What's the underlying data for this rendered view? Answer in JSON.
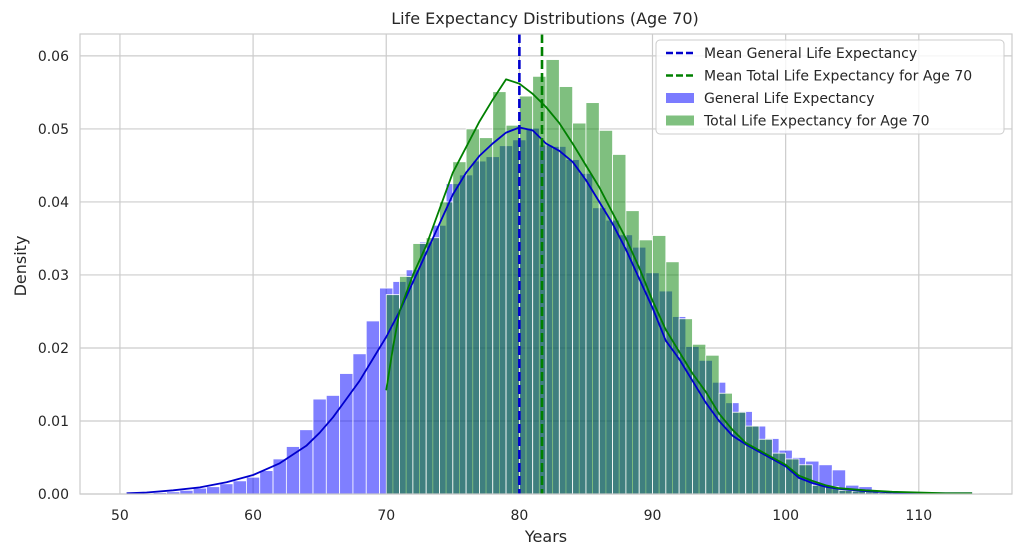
{
  "chart_data": {
    "type": "bar",
    "title": "Life Expectancy Distributions (Age 70)",
    "xlabel": "Years",
    "ylabel": "Density",
    "xlim": [
      47,
      117
    ],
    "ylim": [
      0,
      0.063
    ],
    "xticks": [
      50,
      60,
      70,
      80,
      90,
      100,
      110
    ],
    "yticks": [
      0.0,
      0.01,
      0.02,
      0.03,
      0.04,
      0.05,
      0.06
    ],
    "xtick_labels": [
      "50",
      "60",
      "70",
      "80",
      "90",
      "100",
      "110"
    ],
    "ytick_labels": [
      "0.00",
      "0.01",
      "0.02",
      "0.03",
      "0.04",
      "0.05",
      "0.06"
    ],
    "grid": true,
    "legend_position": "upper-right",
    "histograms": [
      {
        "name": "General Life Expectancy",
        "color": "#0000ff",
        "opacity": 0.5,
        "bin_start": 50.5,
        "bin_width": 1.0,
        "densities": [
          0.0001,
          0.0001,
          0.0002,
          0.0003,
          0.0005,
          0.0008,
          0.001,
          0.0014,
          0.0018,
          0.0023,
          0.0032,
          0.0048,
          0.0065,
          0.0088,
          0.013,
          0.0135,
          0.0165,
          0.0192,
          0.0237,
          0.0282,
          0.0291,
          0.0307,
          0.0345,
          0.0368,
          0.0425,
          0.0437,
          0.0456,
          0.0462,
          0.0477,
          0.0485,
          0.0501,
          0.0478,
          0.0476,
          0.0458,
          0.0439,
          0.0392,
          0.0375,
          0.0355,
          0.0338,
          0.0303,
          0.0278,
          0.0243,
          0.0202,
          0.0183,
          0.0153,
          0.0125,
          0.0113,
          0.0093,
          0.0076,
          0.006,
          0.005,
          0.0045,
          0.004,
          0.0033,
          0.0012,
          0.001,
          0.0005,
          0.0004,
          0.0003,
          0.0002,
          0.0002,
          0.0001,
          0.0001,
          0.0001
        ]
      },
      {
        "name": "Total Life Expectancy for Age 70",
        "color": "#008000",
        "opacity": 0.5,
        "bin_start": 70.0,
        "bin_width": 1.0,
        "densities": [
          0.0273,
          0.0298,
          0.0343,
          0.0351,
          0.04,
          0.0455,
          0.05,
          0.0488,
          0.0551,
          0.0505,
          0.0545,
          0.0572,
          0.0595,
          0.0558,
          0.0508,
          0.0536,
          0.0498,
          0.0465,
          0.0388,
          0.0348,
          0.0354,
          0.0318,
          0.024,
          0.0205,
          0.019,
          0.0138,
          0.0112,
          0.0093,
          0.0075,
          0.0056,
          0.0048,
          0.004,
          0.0012,
          0.001,
          0.0005,
          0.0004,
          0.0003,
          0.0002,
          0.0002,
          0.0002,
          0.0001,
          0.0001,
          0.0001,
          0.0001
        ]
      }
    ],
    "kde_curves": [
      {
        "name": "General Life Expectancy",
        "color": "#0000cd",
        "x": [
          50.5,
          52,
          54,
          56,
          58,
          60,
          62,
          64,
          65,
          66,
          67,
          68,
          69,
          70,
          71,
          72,
          73,
          74,
          75,
          76,
          77,
          78,
          79,
          80,
          81,
          82,
          83,
          84,
          85,
          86,
          87,
          88,
          89,
          90,
          91,
          92,
          93,
          94,
          95,
          96,
          97,
          98,
          99,
          100,
          101,
          102,
          103,
          104,
          106,
          108,
          110,
          112,
          114
        ],
        "y": [
          0.0001,
          0.0002,
          0.0005,
          0.0009,
          0.0016,
          0.0026,
          0.0042,
          0.0066,
          0.0084,
          0.0105,
          0.013,
          0.0155,
          0.0185,
          0.0215,
          0.025,
          0.029,
          0.033,
          0.037,
          0.041,
          0.044,
          0.0463,
          0.048,
          0.0495,
          0.0502,
          0.0498,
          0.048,
          0.047,
          0.0455,
          0.043,
          0.04,
          0.037,
          0.0335,
          0.0295,
          0.0255,
          0.021,
          0.0185,
          0.0155,
          0.0125,
          0.01,
          0.008,
          0.0068,
          0.0058,
          0.0048,
          0.0038,
          0.0022,
          0.0015,
          0.001,
          0.0007,
          0.0004,
          0.0002,
          0.0001,
          0.0001,
          0.0001
        ]
      },
      {
        "name": "Total Life Expectancy for Age 70",
        "color": "#008000",
        "x": [
          70,
          70.5,
          71,
          72,
          73,
          74,
          75,
          76,
          77,
          78,
          79,
          80,
          81,
          82,
          83,
          84,
          85,
          86,
          87,
          88,
          89,
          90,
          91,
          92,
          93,
          94,
          95,
          96,
          97,
          98,
          99,
          100,
          101,
          102,
          103,
          104,
          106,
          108,
          110,
          112,
          114
        ],
        "y": [
          0.0142,
          0.02,
          0.025,
          0.03,
          0.034,
          0.039,
          0.044,
          0.0475,
          0.051,
          0.054,
          0.0568,
          0.0562,
          0.0548,
          0.053,
          0.0508,
          0.048,
          0.045,
          0.042,
          0.0385,
          0.035,
          0.031,
          0.0265,
          0.0225,
          0.0195,
          0.0165,
          0.014,
          0.011,
          0.0088,
          0.007,
          0.006,
          0.005,
          0.004,
          0.0025,
          0.0018,
          0.0012,
          0.0008,
          0.0005,
          0.0003,
          0.0002,
          0.0001,
          0.0001
        ]
      }
    ],
    "vlines": [
      {
        "name": "Mean General Life Expectancy",
        "x": 80.0,
        "color": "#0000cd",
        "style": "dashed"
      },
      {
        "name": "Mean Total Life Expectancy for Age 70",
        "x": 81.7,
        "color": "#008000",
        "style": "dashed"
      }
    ],
    "legend": [
      {
        "label": "Mean General Life Expectancy",
        "kind": "line",
        "color": "#0000cd"
      },
      {
        "label": "Mean Total Life Expectancy for Age 70",
        "kind": "line",
        "color": "#008000"
      },
      {
        "label": "General Life Expectancy",
        "kind": "patch",
        "color": "#7b7bff"
      },
      {
        "label": "Total Life Expectancy for Age 70",
        "kind": "patch",
        "color": "#7fc07f"
      }
    ]
  }
}
